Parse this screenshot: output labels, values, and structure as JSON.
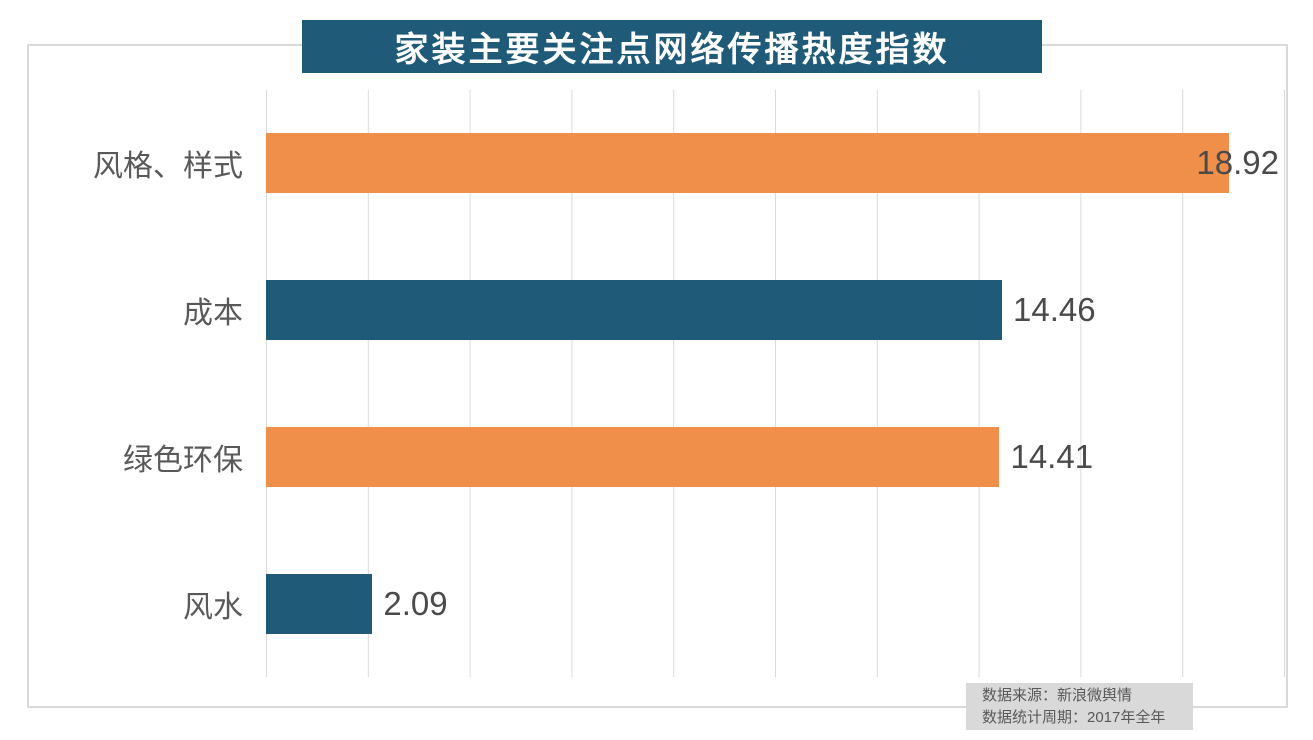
{
  "title": {
    "text": "家装主要关注点网络传播热度指数"
  },
  "chart_data": {
    "type": "bar",
    "orientation": "horizontal",
    "title": "家装主要关注点网络传播热度指数",
    "categories": [
      "风格、样式",
      "成本",
      "绿色环保",
      "风水"
    ],
    "values": [
      18.92,
      14.46,
      14.41,
      2.09
    ],
    "bar_colors": [
      "#EF8F49",
      "#1F5B78",
      "#EF8F49",
      "#1F5B78"
    ],
    "xlim": [
      0,
      20
    ],
    "gridline_step": 2,
    "grid": "vertical-lines-on",
    "legend_position": "none",
    "data_labels": "outside-end",
    "xlabel": "",
    "ylabel": ""
  },
  "source_note": {
    "line1": "数据来源：新浪微舆情",
    "line2": "数据统计周期：2017年全年"
  },
  "colors": {
    "accent_orange": "#EF8F49",
    "accent_teal": "#1F5B78",
    "title_bg": "#1F5B78",
    "title_text": "#FFFFFF",
    "gridline": "#D9D9D9",
    "frame_border": "#D9D9D9",
    "category_text": "#595959",
    "value_text": "#4A4A4A",
    "note_bg": "#D9D9D9",
    "note_text": "#595959"
  }
}
